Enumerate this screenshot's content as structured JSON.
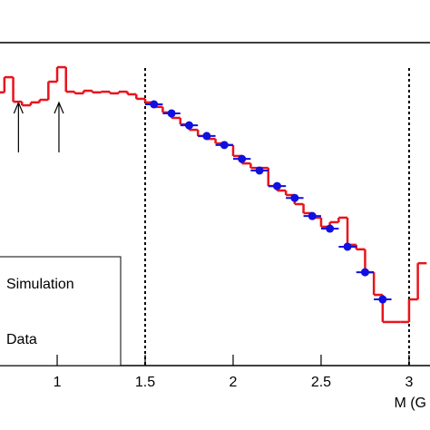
{
  "chart_data": {
    "type": "histogram",
    "x_label": "M (G",
    "xlim": [
      0.675,
      3.119
    ],
    "ylim": [
      0,
      100
    ],
    "xticks": [
      1,
      1.5,
      2,
      2.5,
      3
    ],
    "dashed_lines_x": [
      1.5,
      3
    ],
    "arrows_x": [
      0.78,
      1.01
    ],
    "bins": [
      0.65,
      0.7,
      0.75,
      0.8,
      0.85,
      0.9,
      0.95,
      1.0,
      1.05,
      1.1,
      1.15,
      1.2,
      1.25,
      1.3,
      1.35,
      1.4,
      1.45,
      1.5,
      1.55,
      1.6,
      1.65,
      1.7,
      1.75,
      1.8,
      1.85,
      1.9,
      1.95,
      2.0,
      2.05,
      2.1,
      2.15,
      2.2,
      2.25,
      2.3,
      2.35,
      2.4,
      2.45,
      2.5,
      2.55,
      2.6,
      2.65,
      2.7,
      2.75,
      2.8,
      2.85,
      2.9,
      2.95,
      3.0,
      3.05,
      3.1
    ],
    "series": [
      {
        "name": "Simulation",
        "color": "#e8141c",
        "values": [
          84.6,
          89.3,
          81.7,
          80.6,
          81.5,
          82.3,
          87.9,
          92.4,
          84.8,
          84.3,
          85.1,
          84.6,
          84.8,
          84.3,
          84.8,
          84.0,
          82.6,
          81.5,
          80.1,
          78.4,
          76.7,
          74.7,
          73.0,
          71.1,
          70.2,
          68.8,
          68.3,
          64.9,
          62.6,
          61.2,
          61.2,
          55.6,
          54.2,
          52.8,
          50.0,
          47.2,
          45.8,
          43.0,
          44.4,
          45.8,
          37.4,
          36.0,
          28.9,
          21.9,
          13.5,
          13.5,
          13.5,
          20.5,
          31.7
        ]
      },
      {
        "name": "Data",
        "color": "#1010e0",
        "x": [
          1.55,
          1.65,
          1.75,
          1.85,
          1.95,
          2.05,
          2.15,
          2.25,
          2.35,
          2.45,
          2.55,
          2.65,
          2.75,
          2.85
        ],
        "values": [
          80.9,
          78.1,
          74.4,
          71.1,
          68.3,
          64.0,
          60.4,
          55.6,
          51.9,
          46.3,
          42.4,
          36.8,
          28.9,
          20.5
        ],
        "x_error": 0.05
      }
    ]
  }
}
